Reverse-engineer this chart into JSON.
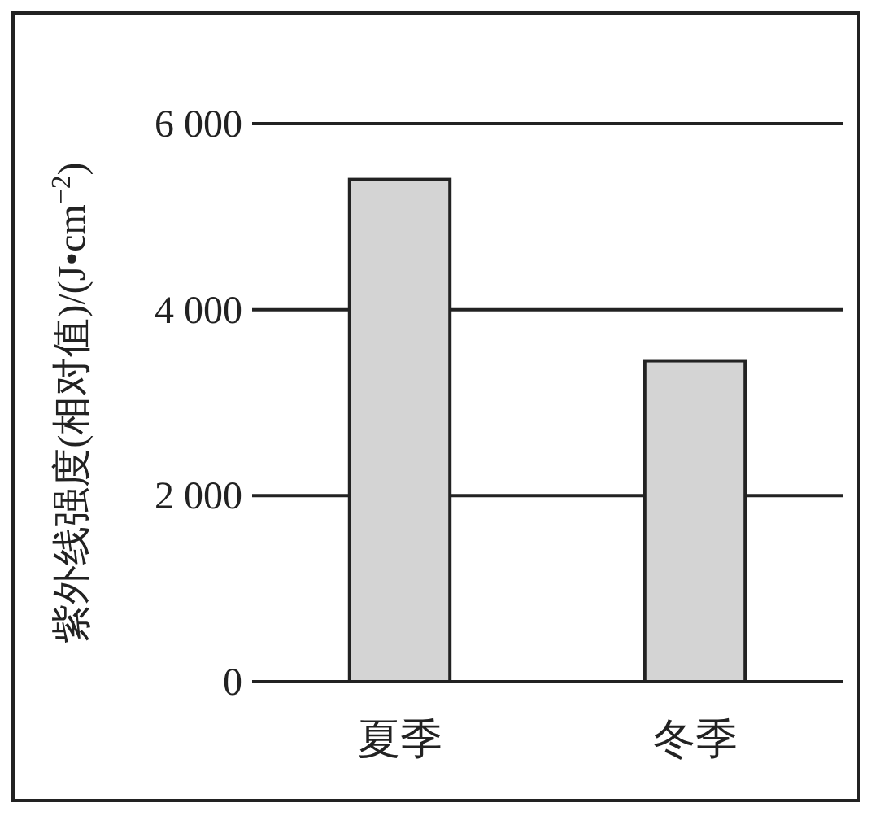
{
  "chart_data": {
    "type": "bar",
    "ylabel": "紫外线强度(相对值)/(J•cm$^{−2}$)",
    "categories": [
      "夏季",
      "冬季"
    ],
    "values": [
      5400,
      3450
    ],
    "color": "#d4d4d4",
    "ylim": [
      0,
      6000
    ],
    "yticks": [
      {
        "value": 0,
        "label": "0"
      },
      {
        "value": 2000,
        "label": "2 000"
      },
      {
        "value": 4000,
        "label": "4 000"
      },
      {
        "value": 6000,
        "label": "6 000"
      }
    ],
    "grid": "y"
  }
}
